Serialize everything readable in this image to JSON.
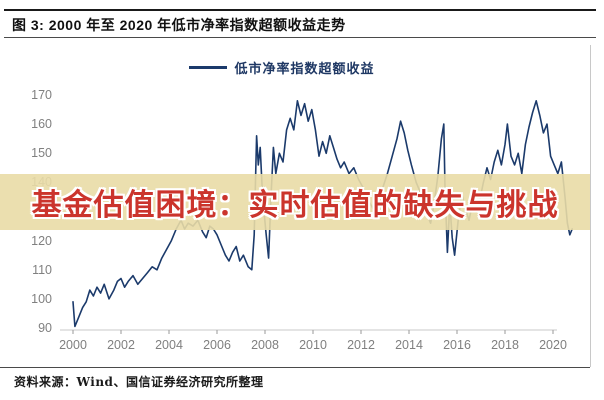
{
  "figure": {
    "title": "图 3: 2000 年至 2020 年低市净率指数超额收益走势",
    "source": "资料来源：Wind、国信证券经济研究所整理"
  },
  "legend": {
    "label": "低市净率指数超额收益"
  },
  "watermark": {
    "text": "基金估值困境：实时估值的缺失与挑战",
    "band_color": "#E9DBA6",
    "text_color": "#CB342C"
  },
  "chart_data": {
    "type": "line",
    "title": "2000 年至 2020 年低市净率指数超额收益走势",
    "xlabel": "",
    "ylabel": "",
    "ylim": [
      90,
      170
    ],
    "xlim": [
      2000,
      2021
    ],
    "y_ticks": [
      90,
      100,
      110,
      120,
      130,
      140,
      150,
      160,
      170
    ],
    "x_ticks": [
      2000,
      2002,
      2004,
      2006,
      2008,
      2010,
      2012,
      2014,
      2016,
      2018,
      2020
    ],
    "grid": false,
    "legend_position": "top-center",
    "line_color": "#1B3A6B",
    "axis_color": "#C9C9C9",
    "tick_text_color": "#808080",
    "series": [
      {
        "name": "低市净率指数超额收益",
        "points": [
          [
            2000.0,
            99
          ],
          [
            2000.08,
            90.5
          ],
          [
            2000.25,
            94
          ],
          [
            2000.4,
            97
          ],
          [
            2000.55,
            99
          ],
          [
            2000.7,
            103
          ],
          [
            2000.85,
            101
          ],
          [
            2001.0,
            104
          ],
          [
            2001.15,
            102
          ],
          [
            2001.3,
            105
          ],
          [
            2001.5,
            100
          ],
          [
            2001.7,
            103
          ],
          [
            2001.85,
            106
          ],
          [
            2002.0,
            107
          ],
          [
            2002.15,
            104
          ],
          [
            2002.3,
            106
          ],
          [
            2002.5,
            108
          ],
          [
            2002.7,
            105
          ],
          [
            2002.9,
            107
          ],
          [
            2003.1,
            109
          ],
          [
            2003.3,
            111
          ],
          [
            2003.5,
            110
          ],
          [
            2003.7,
            114
          ],
          [
            2003.9,
            117
          ],
          [
            2004.1,
            120
          ],
          [
            2004.3,
            124
          ],
          [
            2004.5,
            127
          ],
          [
            2004.65,
            124
          ],
          [
            2004.8,
            126
          ],
          [
            2005.0,
            125
          ],
          [
            2005.2,
            127
          ],
          [
            2005.4,
            123
          ],
          [
            2005.55,
            121
          ],
          [
            2005.7,
            125
          ],
          [
            2005.85,
            124
          ],
          [
            2006.0,
            122
          ],
          [
            2006.2,
            118
          ],
          [
            2006.35,
            115
          ],
          [
            2006.5,
            113
          ],
          [
            2006.65,
            116
          ],
          [
            2006.8,
            118
          ],
          [
            2006.95,
            113
          ],
          [
            2007.1,
            115
          ],
          [
            2007.3,
            111
          ],
          [
            2007.45,
            110
          ],
          [
            2007.55,
            122
          ],
          [
            2007.65,
            156
          ],
          [
            2007.72,
            146
          ],
          [
            2007.8,
            152
          ],
          [
            2007.9,
            135
          ],
          [
            2008.05,
            122
          ],
          [
            2008.15,
            114
          ],
          [
            2008.25,
            135
          ],
          [
            2008.35,
            152
          ],
          [
            2008.45,
            143
          ],
          [
            2008.6,
            150
          ],
          [
            2008.75,
            147
          ],
          [
            2008.9,
            158
          ],
          [
            2009.05,
            162
          ],
          [
            2009.2,
            158
          ],
          [
            2009.35,
            168
          ],
          [
            2009.5,
            163
          ],
          [
            2009.65,
            167
          ],
          [
            2009.8,
            161
          ],
          [
            2009.95,
            165
          ],
          [
            2010.1,
            158
          ],
          [
            2010.25,
            149
          ],
          [
            2010.4,
            154
          ],
          [
            2010.55,
            150
          ],
          [
            2010.7,
            156
          ],
          [
            2010.85,
            152
          ],
          [
            2011.0,
            148
          ],
          [
            2011.15,
            145
          ],
          [
            2011.3,
            147
          ],
          [
            2011.5,
            143
          ],
          [
            2011.7,
            145
          ],
          [
            2011.9,
            141
          ],
          [
            2012.1,
            138
          ],
          [
            2012.3,
            134
          ],
          [
            2012.5,
            131
          ],
          [
            2012.7,
            135
          ],
          [
            2012.9,
            138
          ],
          [
            2013.1,
            143
          ],
          [
            2013.3,
            149
          ],
          [
            2013.5,
            155
          ],
          [
            2013.65,
            161
          ],
          [
            2013.8,
            157
          ],
          [
            2013.95,
            151
          ],
          [
            2014.1,
            146
          ],
          [
            2014.3,
            140
          ],
          [
            2014.5,
            136
          ],
          [
            2014.7,
            130
          ],
          [
            2014.9,
            126
          ],
          [
            2015.05,
            133
          ],
          [
            2015.2,
            142
          ],
          [
            2015.35,
            155
          ],
          [
            2015.45,
            160
          ],
          [
            2015.5,
            138
          ],
          [
            2015.6,
            116
          ],
          [
            2015.7,
            133
          ],
          [
            2015.8,
            121
          ],
          [
            2015.9,
            115
          ],
          [
            2016.05,
            127
          ],
          [
            2016.2,
            136
          ],
          [
            2016.35,
            131
          ],
          [
            2016.5,
            127
          ],
          [
            2016.65,
            133
          ],
          [
            2016.8,
            138
          ],
          [
            2016.95,
            134
          ],
          [
            2017.1,
            140
          ],
          [
            2017.25,
            145
          ],
          [
            2017.4,
            141
          ],
          [
            2017.55,
            147
          ],
          [
            2017.7,
            151
          ],
          [
            2017.85,
            146
          ],
          [
            2018.0,
            153
          ],
          [
            2018.1,
            160
          ],
          [
            2018.25,
            149
          ],
          [
            2018.4,
            146
          ],
          [
            2018.55,
            150
          ],
          [
            2018.7,
            143
          ],
          [
            2018.85,
            153
          ],
          [
            2019.0,
            159
          ],
          [
            2019.15,
            164
          ],
          [
            2019.3,
            168
          ],
          [
            2019.45,
            163
          ],
          [
            2019.6,
            157
          ],
          [
            2019.75,
            160
          ],
          [
            2019.9,
            149
          ],
          [
            2020.05,
            146
          ],
          [
            2020.2,
            143
          ],
          [
            2020.35,
            147
          ],
          [
            2020.5,
            135
          ],
          [
            2020.6,
            126
          ],
          [
            2020.7,
            122
          ],
          [
            2020.8,
            124
          ]
        ]
      }
    ]
  }
}
